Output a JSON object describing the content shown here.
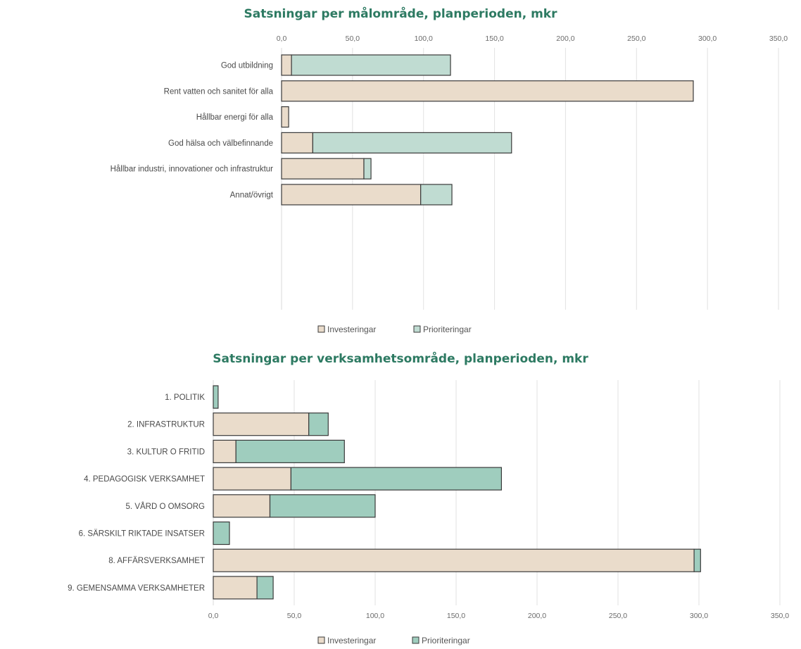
{
  "chart_data": [
    {
      "type": "bar",
      "orientation": "horizontal",
      "stacked": true,
      "title": "Satsningar per målområde, planperioden, mkr",
      "categories": [
        "God utbildning",
        "Rent vatten och sanitet för alla",
        "Hållbar energi för alla",
        "God hälsa och välbefinnande",
        "Hållbar industri, innovationer och infrastruktur",
        "Annat/övrigt"
      ],
      "series": [
        {
          "name": "Investeringar",
          "color": "#eadccb",
          "values": [
            7,
            290,
            5,
            22,
            58,
            98
          ]
        },
        {
          "name": "Prioriteringar",
          "color": "#c0dcd2",
          "values": [
            112,
            0,
            0,
            140,
            5,
            22
          ]
        }
      ],
      "xlim": [
        0,
        350
      ],
      "ticks": [
        "0,0",
        "50,0",
        "100,0",
        "150,0",
        "200,0",
        "250,0",
        "300,0",
        "350,0"
      ],
      "tick_position": "top",
      "legend": [
        "Investeringar",
        "Prioriteringar"
      ],
      "legend_position": "bottom",
      "grid": true
    },
    {
      "type": "bar",
      "orientation": "horizontal",
      "stacked": true,
      "title": "Satsningar per verksamhetsområde, planperioden, mkr",
      "categories": [
        "1. POLITIK",
        "2. INFRASTRUKTUR",
        "3. KULTUR O FRITID",
        "4. PEDAGOGISK VERKSAMHET",
        "5. VÅRD O OMSORG",
        "6. SÄRSKILT RIKTADE INSATSER",
        "8. AFFÄRSVERKSAMHET",
        "9. GEMENSAMMA VERKSAMHETER"
      ],
      "series": [
        {
          "name": "Investeringar",
          "color": "#eadccb",
          "values": [
            0,
            59,
            14,
            48,
            35,
            0,
            297,
            27
          ]
        },
        {
          "name": "Prioriteringar",
          "color": "#9fcdbe",
          "values": [
            3,
            12,
            67,
            130,
            65,
            10,
            4,
            10
          ]
        }
      ],
      "xlim": [
        0,
        350
      ],
      "ticks": [
        "0,0",
        "50,0",
        "100,0",
        "150,0",
        "200,0",
        "250,0",
        "300,0",
        "350,0"
      ],
      "tick_position": "bottom",
      "legend": [
        "Investeringar",
        "Prioriteringar"
      ],
      "legend_position": "bottom",
      "grid": true
    }
  ]
}
